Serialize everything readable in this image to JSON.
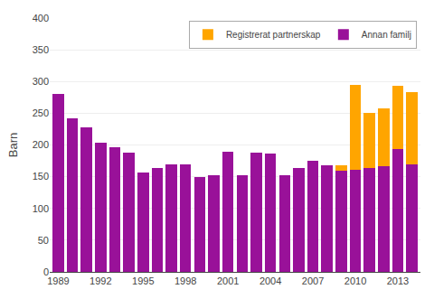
{
  "chart_data": {
    "type": "bar",
    "stacked": true,
    "ylabel": "Barn",
    "x": [
      1989,
      1990,
      1991,
      1992,
      1993,
      1994,
      1995,
      1996,
      1997,
      1998,
      1999,
      2000,
      2001,
      2002,
      2003,
      2004,
      2005,
      2006,
      2007,
      2008,
      2009,
      2010,
      2011,
      2012,
      2013,
      2014
    ],
    "series": [
      {
        "name": "Annan familj",
        "color": "#991199",
        "values": [
          280,
          242,
          228,
          203,
          197,
          188,
          157,
          163,
          170,
          170,
          150,
          153,
          190,
          153,
          188,
          187,
          152,
          163,
          175,
          168,
          160,
          161,
          163,
          167,
          194,
          170
        ]
      },
      {
        "name": "Registrerat partnerskap",
        "color": "#FFA500",
        "values": [
          0,
          0,
          0,
          0,
          0,
          0,
          0,
          0,
          0,
          0,
          0,
          0,
          0,
          0,
          0,
          0,
          0,
          0,
          0,
          0,
          8,
          134,
          87,
          91,
          99,
          113
        ]
      }
    ],
    "xlim": [
      1988.4,
      2014.6
    ],
    "xticks": [
      1989,
      1992,
      1995,
      1998,
      2001,
      2004,
      2007,
      2010,
      2013
    ],
    "ylim": [
      0,
      400
    ],
    "yticks": [
      0,
      50,
      100,
      150,
      200,
      250,
      300,
      350,
      400
    ],
    "grid": true,
    "legend": "upper right"
  }
}
